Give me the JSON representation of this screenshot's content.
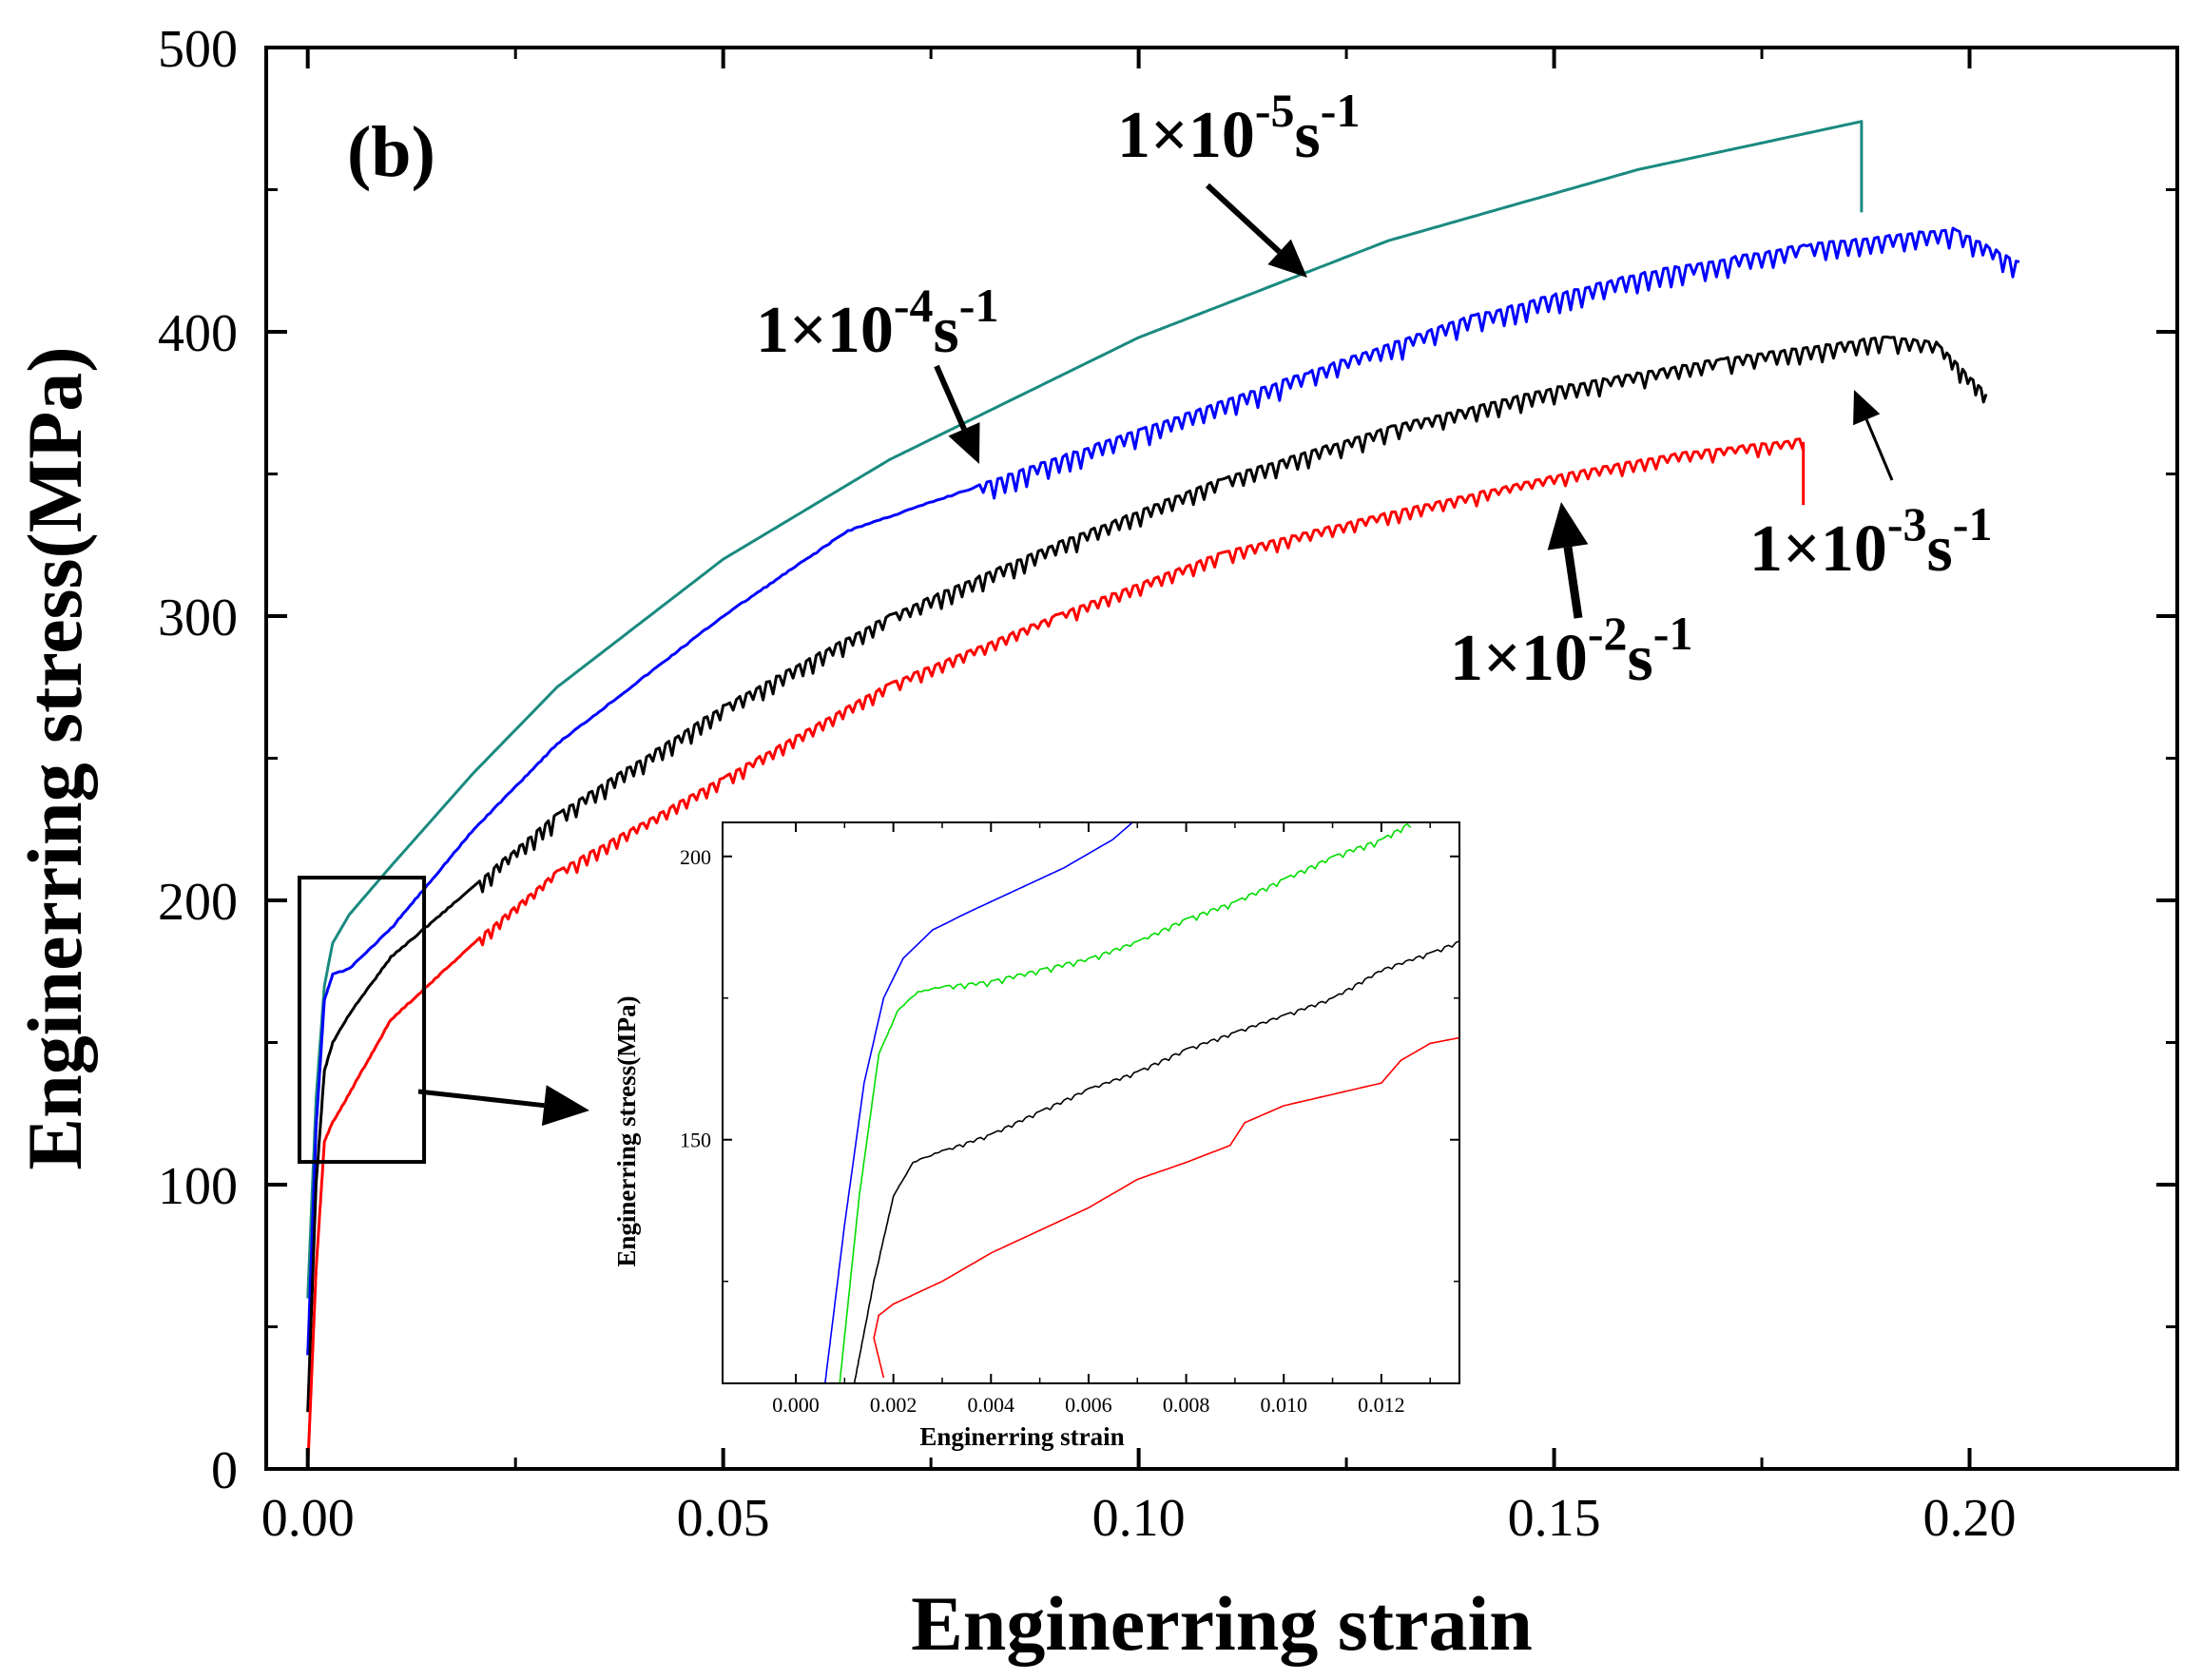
{
  "chart_data": [
    {
      "type": "line",
      "panel_label": "(b)",
      "xlabel": "Enginerring strain",
      "ylabel": "Enginerring stress(MPa)",
      "xlim": [
        -0.005,
        0.225
      ],
      "ylim": [
        0,
        500
      ],
      "x_ticks": [
        "0.00",
        "0.05",
        "0.10",
        "0.15",
        "0.20"
      ],
      "y_ticks": [
        "0",
        "100",
        "200",
        "300",
        "400",
        "500"
      ],
      "grid": false,
      "series": [
        {
          "name": "1×10^-5 s^-1",
          "color": "#1a8a80",
          "serrated": false,
          "x": [
            0.0,
            0.001,
            0.002,
            0.003,
            0.005,
            0.01,
            0.02,
            0.03,
            0.05,
            0.07,
            0.1,
            0.13,
            0.16,
            0.187,
            0.187
          ],
          "y": [
            60,
            130,
            170,
            185,
            195,
            212,
            245,
            275,
            320,
            355,
            398,
            432,
            457,
            474,
            442
          ]
        },
        {
          "name": "1×10^-4 s^-1",
          "color": "#0000ff",
          "serrated": true,
          "x": [
            0.0,
            0.001,
            0.002,
            0.003,
            0.005,
            0.01,
            0.02,
            0.03,
            0.05,
            0.065,
            0.08,
            0.1,
            0.12,
            0.14,
            0.16,
            0.18,
            0.198,
            0.206
          ],
          "y": [
            40,
            120,
            165,
            174,
            176,
            190,
            225,
            255,
            300,
            330,
            345,
            365,
            385,
            405,
            420,
            430,
            436,
            424
          ]
        },
        {
          "name": "1×10^-3 s^-1",
          "color": "#000000",
          "serrated": true,
          "x": [
            0.0,
            0.001,
            0.002,
            0.003,
            0.005,
            0.01,
            0.02,
            0.03,
            0.05,
            0.07,
            0.09,
            0.11,
            0.13,
            0.15,
            0.17,
            0.19,
            0.196,
            0.202
          ],
          "y": [
            20,
            100,
            140,
            150,
            160,
            180,
            205,
            230,
            268,
            300,
            325,
            348,
            366,
            380,
            390,
            398,
            396,
            378
          ]
        },
        {
          "name": "1×10^-2 s^-1",
          "color": "#ff0000",
          "serrated": true,
          "x": [
            0.0,
            0.001,
            0.002,
            0.003,
            0.005,
            0.01,
            0.02,
            0.03,
            0.05,
            0.07,
            0.09,
            0.11,
            0.13,
            0.15,
            0.165,
            0.18,
            0.18
          ],
          "y": [
            0,
            70,
            115,
            122,
            132,
            158,
            185,
            210,
            243,
            276,
            300,
            322,
            336,
            349,
            357,
            362,
            342
          ]
        }
      ],
      "annotations": [
        {
          "label_base": "1×10",
          "label_exp": "-5",
          "label_unit": "s",
          "label_unit_exp": "-1",
          "series": "1×10^-5 s^-1"
        },
        {
          "label_base": "1×10",
          "label_exp": "-4",
          "label_unit": "s",
          "label_unit_exp": "-1",
          "series": "1×10^-4 s^-1"
        },
        {
          "label_base": "1×10",
          "label_exp": "-3",
          "label_unit": "s",
          "label_unit_exp": "-1",
          "series": "1×10^-3 s^-1"
        },
        {
          "label_base": "1×10",
          "label_exp": "-2",
          "label_unit": "s",
          "label_unit_exp": "-1",
          "series": "1×10^-2 s^-1"
        }
      ],
      "zoom_box": {
        "x": [
          -0.001,
          0.014
        ],
        "y": [
          108,
          208
        ]
      }
    },
    {
      "type": "line",
      "role": "inset",
      "xlabel": "Enginerring strain",
      "ylabel": "Enginerring stress(MPa)",
      "xlim": [
        -0.0015,
        0.0136
      ],
      "ylim": [
        107,
        206
      ],
      "x_ticks": [
        "0.000",
        "0.002",
        "0.004",
        "0.006",
        "0.008",
        "0.010",
        "0.012"
      ],
      "y_ticks": [
        "150",
        "200"
      ],
      "series": [
        {
          "name": "1×10^-5 s^-1",
          "color": "#0000ff",
          "serrated": false,
          "x": [
            0.0006,
            0.001,
            0.0014,
            0.0018,
            0.0022,
            0.0028,
            0.0035,
            0.0045,
            0.0055,
            0.0065,
            0.0069
          ],
          "y": [
            107,
            135,
            160,
            175,
            182,
            187,
            190,
            194,
            198,
            203,
            206
          ]
        },
        {
          "name": "1×10^-4 s^-1",
          "color": "#00dd00",
          "serrated": true,
          "x": [
            0.0009,
            0.0013,
            0.0017,
            0.0021,
            0.0025,
            0.003,
            0.004,
            0.005,
            0.006,
            0.007,
            0.008,
            0.009,
            0.01,
            0.011,
            0.012,
            0.0126
          ],
          "y": [
            107,
            140,
            165,
            173,
            176,
            177,
            178,
            180,
            182,
            185,
            189,
            192,
            196,
            200,
            203,
            206
          ]
        },
        {
          "name": "1×10^-3 s^-1",
          "color": "#000000",
          "serrated": true,
          "x": [
            0.0012,
            0.0016,
            0.002,
            0.0024,
            0.003,
            0.004,
            0.005,
            0.006,
            0.007,
            0.008,
            0.009,
            0.01,
            0.011,
            0.012,
            0.013,
            0.0136
          ],
          "y": [
            107,
            125,
            140,
            146,
            148,
            151,
            155,
            159,
            162,
            166,
            169,
            172,
            175,
            180,
            183,
            185
          ]
        },
        {
          "name": "1×10^-2 s^-1",
          "color": "#ff0000",
          "serrated": false,
          "x": [
            0.0018,
            0.0016,
            0.0017,
            0.002,
            0.003,
            0.004,
            0.005,
            0.006,
            0.007,
            0.008,
            0.0089,
            0.0092,
            0.01,
            0.011,
            0.012,
            0.0124,
            0.013,
            0.0136
          ],
          "y": [
            108,
            115,
            119,
            121,
            125,
            130,
            134,
            138,
            143,
            146,
            149,
            153,
            156,
            158,
            160,
            164,
            167,
            168
          ]
        }
      ]
    }
  ]
}
